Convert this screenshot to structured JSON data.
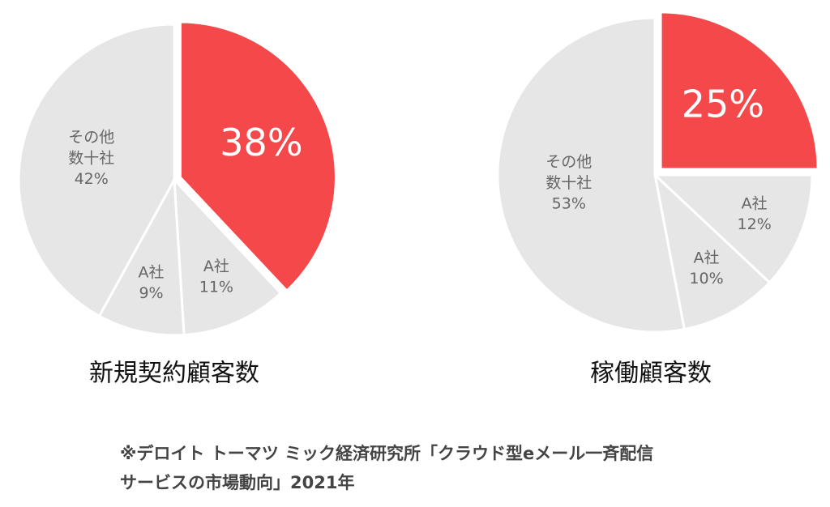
{
  "chart_data": [
    {
      "type": "pie",
      "title": "新規契約顧客数",
      "categories": [
        null,
        "A社",
        "A社",
        "その他\n数十社"
      ],
      "values": [
        38,
        11,
        9,
        42
      ],
      "value_labels": [
        "38%",
        "11%",
        "9%",
        "42%"
      ],
      "colors": [
        "#f5484a",
        "#e6e6e6",
        "#e6e6e6",
        "#e6e6e6"
      ],
      "explode": [
        true,
        false,
        false,
        false
      ]
    },
    {
      "type": "pie",
      "title": "稼働顧客数",
      "categories": [
        null,
        "A社",
        "A社",
        "その他\n数十社"
      ],
      "values": [
        25,
        12,
        10,
        53
      ],
      "value_labels": [
        "25%",
        "12%",
        "10%",
        "53%"
      ],
      "colors": [
        "#f5484a",
        "#e6e6e6",
        "#e6e6e6",
        "#e6e6e6"
      ],
      "explode": [
        true,
        false,
        false,
        false
      ]
    }
  ],
  "footnote": [
    "※デロイト トーマツ ミック経済研究所「クラウド型eメール一斉配信",
    "サービスの市場動向」2021年"
  ]
}
